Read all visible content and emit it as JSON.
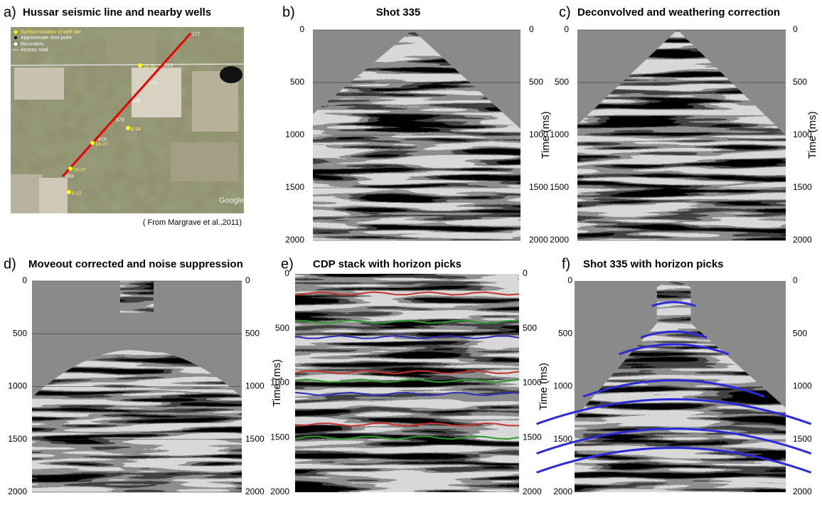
{
  "map": {
    "label": "a)",
    "title": "Hussar seismic line and nearby wells",
    "legend": [
      "Surface location of well site",
      "Approximate shot point",
      "Recorders",
      "Access road"
    ],
    "wells": [
      "14-35",
      "8-34",
      "14-27",
      "10-27",
      "5-27"
    ],
    "shots": [
      "177",
      "213",
      "273",
      "325",
      "373",
      "413",
      "493"
    ],
    "watermark": "Google",
    "credit": "( From Margrave et al.,2011)"
  },
  "sections": [
    {
      "label": "b)",
      "title": "Shot 335",
      "axis_label": "Time (ms)",
      "ylim": [
        0,
        2000
      ],
      "yticks": [
        0,
        500,
        1000,
        1500,
        2000
      ],
      "grid": true
    },
    {
      "label": "c)",
      "title": "Deconvolved and weathering correction",
      "axis_label": "Time (ms)",
      "ylim": [
        0,
        2000
      ],
      "yticks": [
        0,
        500,
        1000,
        1500,
        2000
      ],
      "grid": true
    },
    {
      "label": "d)",
      "title": "Moveout corrected and noise suppression",
      "ylim": [
        0,
        2000
      ],
      "yticks": [
        0,
        500,
        1000,
        1500,
        2000
      ],
      "grid": true
    },
    {
      "label": "e)",
      "title": "CDP stack with horizon picks",
      "axis_label": "Time (ms)",
      "ylim": [
        0,
        2000
      ],
      "yticks": [
        0,
        500,
        1000,
        1500,
        2000
      ],
      "grid": false
    },
    {
      "label": "f)",
      "title": "Shot 335 with horizon picks",
      "axis_label": "Time (ms)",
      "ylim": [
        0,
        2000
      ],
      "yticks": [
        0,
        500,
        1000,
        1500,
        2000
      ],
      "grid": false
    }
  ]
}
